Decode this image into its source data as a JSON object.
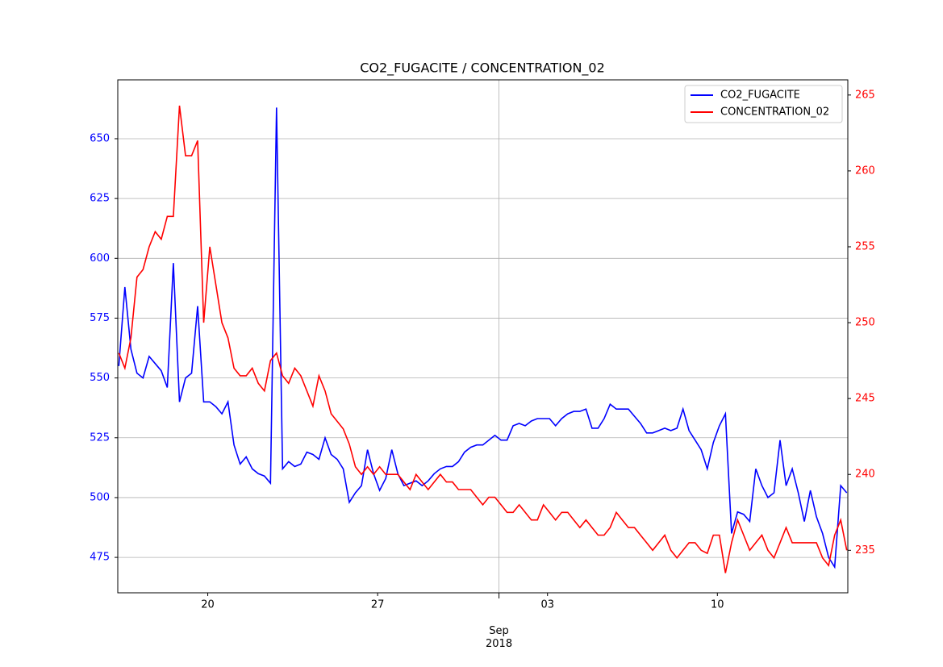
{
  "chart_data": {
    "type": "line",
    "title": "CO2_FUGACITE / CONCENTRATION_02",
    "x": [
      "2018-08-16 08:00",
      "2018-08-16 14:00",
      "2018-08-16 20:00",
      "2018-08-17 02:00",
      "2018-08-17 08:00",
      "2018-08-17 14:00",
      "2018-08-17 20:00",
      "2018-08-18 02:00",
      "2018-08-18 08:00",
      "2018-08-18 14:00",
      "2018-08-18 20:00",
      "2018-08-19 02:00",
      "2018-08-19 08:00",
      "2018-08-19 14:00",
      "2018-08-19 20:00",
      "2018-08-20 02:00",
      "2018-08-20 08:00",
      "2018-08-20 14:00",
      "2018-08-20 20:00",
      "2018-08-21 02:00",
      "2018-08-21 08:00",
      "2018-08-21 14:00",
      "2018-08-21 20:00",
      "2018-08-22 02:00",
      "2018-08-22 08:00",
      "2018-08-22 14:00",
      "2018-08-22 20:00",
      "2018-08-23 02:00",
      "2018-08-23 08:00",
      "2018-08-23 14:00",
      "2018-08-23 20:00",
      "2018-08-24 02:00",
      "2018-08-24 08:00",
      "2018-08-24 14:00",
      "2018-08-24 20:00",
      "2018-08-25 02:00",
      "2018-08-25 08:00",
      "2018-08-25 14:00",
      "2018-08-25 20:00",
      "2018-08-26 02:00",
      "2018-08-26 08:00",
      "2018-08-26 14:00",
      "2018-08-26 20:00",
      "2018-08-27 02:00",
      "2018-08-27 08:00",
      "2018-08-27 14:00",
      "2018-08-27 20:00",
      "2018-08-28 02:00",
      "2018-08-28 08:00",
      "2018-08-28 14:00",
      "2018-08-28 20:00",
      "2018-08-29 02:00",
      "2018-08-29 08:00",
      "2018-08-29 14:00",
      "2018-08-29 20:00",
      "2018-08-30 02:00",
      "2018-08-30 08:00",
      "2018-08-30 14:00",
      "2018-08-30 20:00",
      "2018-08-31 02:00",
      "2018-08-31 08:00",
      "2018-08-31 14:00",
      "2018-08-31 20:00",
      "2018-09-01 02:00",
      "2018-09-01 08:00",
      "2018-09-01 14:00",
      "2018-09-01 20:00",
      "2018-09-02 02:00",
      "2018-09-02 08:00",
      "2018-09-02 14:00",
      "2018-09-02 20:00",
      "2018-09-03 02:00",
      "2018-09-03 08:00",
      "2018-09-03 14:00",
      "2018-09-03 20:00",
      "2018-09-04 02:00",
      "2018-09-04 08:00",
      "2018-09-04 14:00",
      "2018-09-04 20:00",
      "2018-09-05 02:00",
      "2018-09-05 08:00",
      "2018-09-05 14:00",
      "2018-09-05 20:00",
      "2018-09-06 02:00",
      "2018-09-06 08:00",
      "2018-09-06 14:00",
      "2018-09-06 20:00",
      "2018-09-07 02:00",
      "2018-09-07 08:00",
      "2018-09-07 14:00",
      "2018-09-07 20:00",
      "2018-09-08 02:00",
      "2018-09-08 08:00",
      "2018-09-08 14:00",
      "2018-09-08 20:00",
      "2018-09-09 02:00",
      "2018-09-09 08:00",
      "2018-09-09 14:00",
      "2018-09-09 20:00",
      "2018-09-10 02:00",
      "2018-09-10 08:00",
      "2018-09-10 14:00",
      "2018-09-10 20:00",
      "2018-09-11 02:00",
      "2018-09-11 08:00",
      "2018-09-11 14:00",
      "2018-09-11 20:00",
      "2018-09-12 02:00",
      "2018-09-12 08:00",
      "2018-09-12 14:00",
      "2018-09-12 20:00",
      "2018-09-13 02:00",
      "2018-09-13 08:00",
      "2018-09-13 14:00",
      "2018-09-13 20:00",
      "2018-09-14 02:00",
      "2018-09-14 08:00",
      "2018-09-14 14:00",
      "2018-09-14 20:00",
      "2018-09-15 02:00",
      "2018-09-15 08:00"
    ],
    "xlim": [
      "2018-08-16 07:00",
      "2018-09-15 09:00"
    ],
    "xticks": [
      {
        "value": "2018-08-20 00:00",
        "label": "20"
      },
      {
        "value": "2018-08-27 00:00",
        "label": "27"
      },
      {
        "value": "2018-09-03 00:00",
        "label": "03"
      },
      {
        "value": "2018-09-10 00:00",
        "label": "10"
      }
    ],
    "xticks_major": [
      {
        "value": "2018-09-01 00:00",
        "label": "Sep 2018"
      }
    ],
    "series": [
      {
        "name": "CO2_FUGACITE",
        "color": "#0000ff",
        "values": [
          555,
          588,
          562,
          552,
          550,
          559,
          556,
          553,
          546,
          598,
          540,
          550,
          552,
          580,
          540,
          540,
          538,
          535,
          540,
          522,
          514,
          517,
          512,
          510,
          509,
          506,
          663,
          512,
          515,
          513,
          514,
          519,
          518,
          516,
          525,
          518,
          516,
          512,
          498,
          502,
          505,
          520,
          510,
          503,
          508,
          520,
          510,
          505,
          506,
          507,
          505,
          507,
          510,
          512,
          513,
          513,
          515,
          519,
          521,
          522,
          522,
          524,
          526,
          524,
          524,
          530,
          531,
          530,
          532,
          533,
          533,
          533,
          530,
          533,
          535,
          536,
          536,
          537,
          529,
          529,
          533,
          539,
          537,
          537,
          537,
          534,
          531,
          527,
          527,
          528,
          529,
          528,
          529,
          537,
          528,
          524,
          520,
          512,
          523,
          530,
          535,
          485,
          494,
          493,
          490,
          512,
          505,
          500,
          502,
          524,
          505,
          512,
          502,
          490,
          503,
          492,
          485,
          475,
          471,
          505,
          502
        ]
      },
      {
        "name": "CONCENTRATION_02",
        "color": "#ff0000",
        "axis": "y2",
        "values": [
          248,
          247,
          249,
          253,
          253.5,
          255,
          256,
          255.5,
          257,
          257,
          264.3,
          261,
          261,
          262,
          250,
          255,
          252.5,
          250,
          249,
          247,
          246.5,
          246.5,
          247,
          246,
          245.5,
          247.5,
          248,
          246.5,
          246,
          247,
          246.5,
          245.5,
          244.5,
          246.5,
          245.5,
          244,
          243.5,
          243,
          242,
          240.5,
          240,
          240.5,
          240,
          240.5,
          240,
          240,
          240,
          239.5,
          239,
          240,
          239.5,
          239,
          239.5,
          240,
          239.5,
          239.5,
          239,
          239,
          239,
          238.5,
          238,
          238.5,
          238.5,
          238,
          237.5,
          237.5,
          238,
          237.5,
          237,
          237,
          238,
          237.5,
          237,
          237.5,
          237.5,
          237,
          236.5,
          237,
          236.5,
          236,
          236,
          236.5,
          237.5,
          237,
          236.5,
          236.5,
          236,
          235.5,
          235,
          235.5,
          236,
          235,
          234.5,
          235,
          235.5,
          235.5,
          235,
          234.8,
          236,
          236,
          233.5,
          235.5,
          237,
          236,
          235,
          235.5,
          236,
          235,
          234.5,
          235.5,
          236.5,
          235.5,
          235.5,
          235.5,
          235.5,
          235.5,
          234.5,
          234,
          236,
          237,
          235
        ]
      }
    ],
    "ylim": [
      460.2,
      674.6
    ],
    "yticks": [
      475,
      500,
      525,
      550,
      575,
      600,
      625,
      650
    ],
    "y2lim": [
      232.2,
      266.0
    ],
    "y2ticks": [
      235,
      240,
      245,
      250,
      255,
      260,
      265
    ],
    "grid": true,
    "legend": "upper right"
  }
}
